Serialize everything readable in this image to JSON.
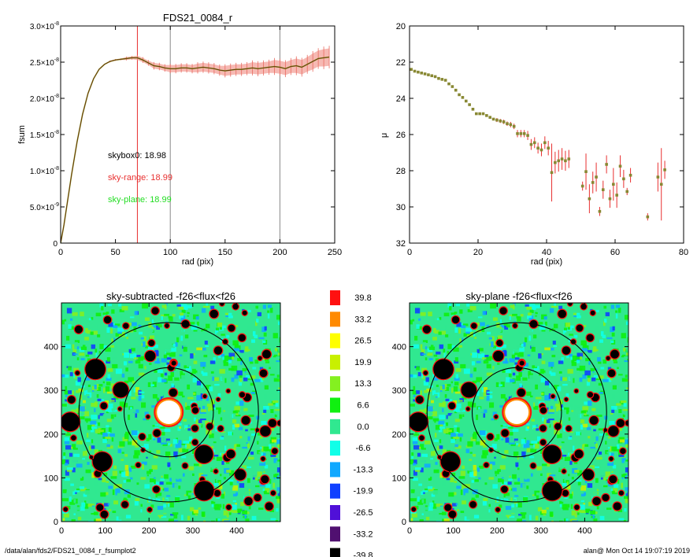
{
  "footer": {
    "path": "/data/alan/fds2/FDS21_0084_r_fsumplot2",
    "stamp": "alan@  Mon Oct 14 19:07:19 2019"
  },
  "chart_data": [
    {
      "type": "line",
      "title": "FDS21_0084_r",
      "xlabel": "rad (pix)",
      "ylabel": "fsum",
      "xlim": [
        0,
        250
      ],
      "ylim": [
        0,
        3e-08
      ],
      "xticks": [
        0,
        50,
        100,
        150,
        200,
        250
      ],
      "yticks": [
        {
          "v": 0,
          "m": "0",
          "e": ""
        },
        {
          "v": 5e-09,
          "m": "5.0×10",
          "e": "-9"
        },
        {
          "v": 1e-08,
          "m": "1.0×10",
          "e": "-8"
        },
        {
          "v": 1.5e-08,
          "m": "1.5×10",
          "e": "-8"
        },
        {
          "v": 2e-08,
          "m": "2.0×10",
          "e": "-8"
        },
        {
          "v": 2.5e-08,
          "m": "2.5×10",
          "e": "-8"
        },
        {
          "v": 3e-08,
          "m": "3.0×10",
          "e": "-8"
        }
      ],
      "vlines": [
        {
          "x": 70,
          "color": "#e83030"
        },
        {
          "x": 100,
          "color": "#888888"
        },
        {
          "x": 200,
          "color": "#888888"
        }
      ],
      "annotations": [
        {
          "text": "skybox0: 18.98",
          "color": "#000000"
        },
        {
          "text": "sky-range: 18.99",
          "color": "#e83030"
        },
        {
          "text": "sky-plane: 18.99",
          "color": "#22dd22"
        }
      ],
      "series": [
        {
          "color": "#cc2200",
          "x": [
            0,
            3,
            6,
            10,
            15,
            20,
            25,
            30,
            35,
            40,
            45,
            50,
            55,
            60,
            65,
            70,
            75,
            80,
            85,
            90,
            95,
            100,
            105,
            110,
            115,
            120,
            125,
            130,
            135,
            140,
            145,
            150,
            155,
            160,
            165,
            170,
            175,
            180,
            185,
            190,
            195,
            200,
            205,
            210,
            215,
            220,
            225,
            230,
            235,
            240,
            245
          ],
          "y": [
            0,
            2.5e-09,
            5.5e-09,
            9.5e-09,
            1.4e-08,
            1.78e-08,
            2.07e-08,
            2.27e-08,
            2.4e-08,
            2.47e-08,
            2.51e-08,
            2.53e-08,
            2.54e-08,
            2.55e-08,
            2.56e-08,
            2.56e-08,
            2.53e-08,
            2.49e-08,
            2.45e-08,
            2.44e-08,
            2.42e-08,
            2.41e-08,
            2.41e-08,
            2.42e-08,
            2.42e-08,
            2.41e-08,
            2.42e-08,
            2.43e-08,
            2.42e-08,
            2.41e-08,
            2.39e-08,
            2.38e-08,
            2.39e-08,
            2.4e-08,
            2.4e-08,
            2.41e-08,
            2.42e-08,
            2.41e-08,
            2.42e-08,
            2.43e-08,
            2.44e-08,
            2.43e-08,
            2.41e-08,
            2.44e-08,
            2.45e-08,
            2.43e-08,
            2.47e-08,
            2.51e-08,
            2.55e-08,
            2.56e-08,
            2.57e-08
          ],
          "err": [
            0,
            0,
            0,
            0,
            0,
            0,
            0,
            0,
            0,
            0,
            1e-10,
            1e-10,
            1e-10,
            2e-10,
            2e-10,
            3e-10,
            3e-10,
            3e-10,
            4e-10,
            4e-10,
            4e-10,
            5e-10,
            5e-10,
            5e-10,
            5e-10,
            5e-10,
            6e-10,
            6e-10,
            6e-10,
            6e-10,
            6e-10,
            7e-10,
            7e-10,
            7e-10,
            7e-10,
            7e-10,
            8e-10,
            8e-10,
            8e-10,
            8e-10,
            9e-10,
            9e-10,
            9e-10,
            9e-10,
            1e-09,
            1e-09,
            1e-09,
            1.1e-09,
            1.1e-09,
            1.2e-09,
            1.2e-09
          ]
        }
      ]
    },
    {
      "type": "scatter",
      "title": "",
      "xlabel": "rad (pix)",
      "ylabel": "μ",
      "xlim": [
        0,
        80
      ],
      "ylim": [
        32,
        20
      ],
      "xticks": [
        0,
        20,
        40,
        60,
        80
      ],
      "yticks": [
        20,
        22,
        24,
        26,
        28,
        30,
        32
      ],
      "point_color": "#888833",
      "err_color": "#e83030",
      "series": [
        {
          "x": [
            0.5,
            1.5,
            2.5,
            3.5,
            4.5,
            5.5,
            6.5,
            7.5,
            8.5,
            9.5,
            10.5,
            11.5,
            12.5,
            13.5,
            14.5,
            15.5,
            16.5,
            17.5,
            18.5,
            19.5,
            20.5,
            21.5,
            22.5,
            23.5,
            24.5,
            25.5,
            26.5,
            27.5,
            28.5,
            29.5,
            30.5,
            31.5,
            32.5,
            33.5,
            34.5,
            35.5,
            36.5,
            37.5,
            38.5,
            39.5,
            40.5,
            41.5,
            42.5,
            43.5,
            44.5,
            45.5,
            46.5,
            50.5,
            51.5,
            52.5,
            53.5,
            54.5,
            55.5,
            56.5,
            57.5,
            58.5,
            59.5,
            60.5,
            61.5,
            62.5,
            63.5,
            64.5,
            69.5,
            72.5,
            73.5,
            74.5
          ],
          "y": [
            22.4,
            22.5,
            22.55,
            22.6,
            22.65,
            22.7,
            22.75,
            22.8,
            22.9,
            22.95,
            23.0,
            23.2,
            23.35,
            23.55,
            23.8,
            23.95,
            24.15,
            24.35,
            24.6,
            24.85,
            24.85,
            24.85,
            24.95,
            25.05,
            25.15,
            25.2,
            25.25,
            25.3,
            25.4,
            25.45,
            25.55,
            25.95,
            25.95,
            25.95,
            26.05,
            26.55,
            26.45,
            26.75,
            26.85,
            26.45,
            26.75,
            28.1,
            27.55,
            27.45,
            27.35,
            27.45,
            27.35,
            28.85,
            28.05,
            29.55,
            28.65,
            28.35,
            30.25,
            29.05,
            27.65,
            29.55,
            28.75,
            29.35,
            27.75,
            28.45,
            29.15,
            28.25,
            30.55,
            28.35,
            28.75,
            27.95
          ],
          "err": [
            0.03,
            0.03,
            0.03,
            0.03,
            0.03,
            0.04,
            0.04,
            0.04,
            0.04,
            0.05,
            0.05,
            0.05,
            0.06,
            0.06,
            0.06,
            0.07,
            0.07,
            0.08,
            0.08,
            0.08,
            0.09,
            0.09,
            0.1,
            0.1,
            0.1,
            0.11,
            0.11,
            0.12,
            0.12,
            0.15,
            0.15,
            0.2,
            0.2,
            0.2,
            0.25,
            0.3,
            0.3,
            0.3,
            0.35,
            0.35,
            0.4,
            1.6,
            0.6,
            0.6,
            0.6,
            0.55,
            0.5,
            0.25,
            1.0,
            0.8,
            0.6,
            0.8,
            0.25,
            0.5,
            0.5,
            0.5,
            0.9,
            0.7,
            0.6,
            0.5,
            0.2,
            0.4,
            0.2,
            0.8,
            2.0,
            0.5
          ]
        }
      ]
    },
    {
      "type": "heatmap",
      "title": "sky-subtracted -f26<flux<f26",
      "xlim": [
        0,
        500
      ],
      "ylim": [
        0,
        500
      ],
      "xticks": [
        0,
        100,
        200,
        300,
        400
      ],
      "yticks": [
        0,
        100,
        200,
        300,
        400
      ],
      "circles": [
        {
          "cx": 245,
          "cy": 250,
          "r": 102
        },
        {
          "cx": 245,
          "cy": 250,
          "r": 205
        }
      ]
    },
    {
      "type": "heatmap",
      "title": "sky-plane -f26<flux<f26",
      "xlim": [
        0,
        500
      ],
      "ylim": [
        0,
        500
      ],
      "xticks": [
        0,
        100,
        200,
        300,
        400
      ],
      "yticks": [
        0,
        100,
        200,
        300,
        400
      ],
      "circles": [
        {
          "cx": 245,
          "cy": 250,
          "r": 102
        },
        {
          "cx": 245,
          "cy": 250,
          "r": 205
        }
      ]
    }
  ],
  "colorbar": {
    "levels": [
      {
        "label": "39.8",
        "color": "#ff1010"
      },
      {
        "label": "33.2",
        "color": "#ff8a00"
      },
      {
        "label": "26.5",
        "color": "#ffff00"
      },
      {
        "label": "19.9",
        "color": "#c8f000"
      },
      {
        "label": "13.3",
        "color": "#84f020"
      },
      {
        "label": "6.6",
        "color": "#10f010"
      },
      {
        "label": "0.0",
        "color": "#30e890"
      },
      {
        "label": "-6.6",
        "color": "#10ffe8"
      },
      {
        "label": "-13.3",
        "color": "#10a8ff"
      },
      {
        "label": "-19.9",
        "color": "#1040ff"
      },
      {
        "label": "-26.5",
        "color": "#5010d8"
      },
      {
        "label": "-33.2",
        "color": "#501070"
      },
      {
        "label": "-39.8",
        "color": "#000000"
      }
    ]
  }
}
